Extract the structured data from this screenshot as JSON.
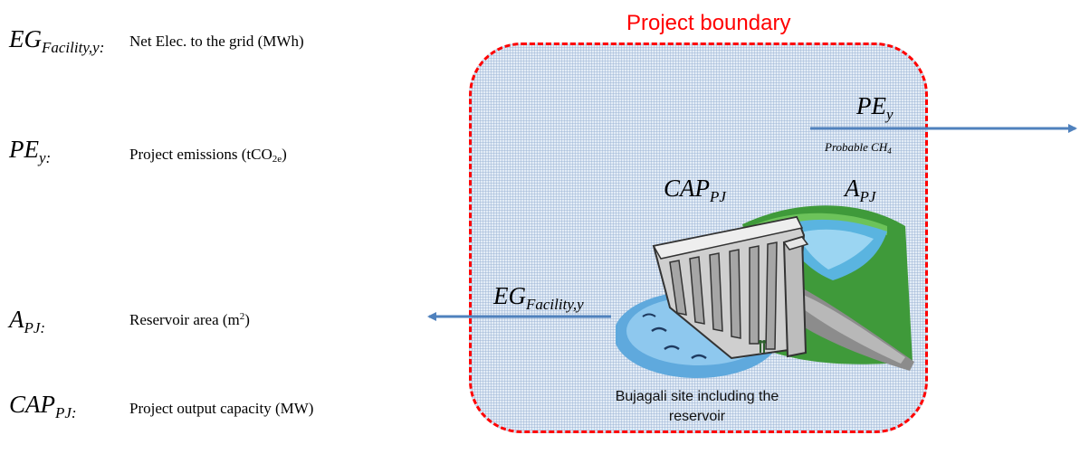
{
  "legend": {
    "items": [
      {
        "symbol": "EG",
        "subscript": "Facility,y:",
        "desc_text": "Net Elec. to the grid (MWh)"
      },
      {
        "symbol": "PE",
        "subscript": "y:",
        "desc_text": "Project emissions (tCO",
        "desc_sub": "2e",
        "desc_tail": ")"
      },
      {
        "symbol": "A",
        "subscript": "PJ:",
        "desc_text": "Reservoir area (m",
        "desc_sup": "2",
        "desc_tail": ")"
      },
      {
        "symbol": "CAP",
        "subscript": "PJ:",
        "desc_text": "Project output capacity (MW)"
      }
    ]
  },
  "boundary": {
    "title": "Project boundary",
    "site_label_line1": "Bujagali site including the",
    "site_label_line2": "reservoir"
  },
  "flows": {
    "pe_symbol": "PE",
    "pe_sub": "y",
    "probable_text": "Probable CH",
    "probable_sub": "4",
    "eg_symbol": "EG",
    "eg_sub": "Facility,y"
  },
  "dam_labels": {
    "cap_symbol": "CAP",
    "cap_sub": "PJ",
    "a_symbol": "A",
    "a_sub": "PJ"
  },
  "colors": {
    "boundary": "#ff0000",
    "arrow": "#4f81bd",
    "box_fill": "#e3ecf6"
  },
  "icons": {
    "dam": "hydro-dam-illustration"
  }
}
